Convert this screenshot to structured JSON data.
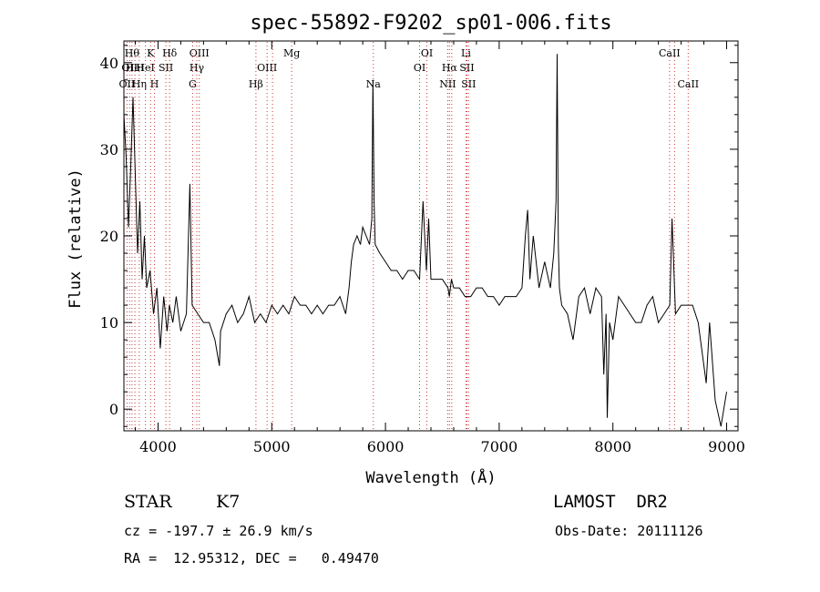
{
  "chart_data": {
    "type": "line",
    "title": "spec-55892-F9202_sp01-006.fits",
    "xlabel": "Wavelength (Å)",
    "ylabel": "Flux (relative)",
    "xlim": [
      3700,
      9100
    ],
    "ylim": [
      -2.5,
      42.5
    ],
    "xticks": [
      4000,
      5000,
      6000,
      7000,
      8000,
      9000
    ],
    "yticks": [
      0,
      10,
      20,
      30,
      40
    ],
    "grid": false,
    "legend": "none",
    "line_color": "#000000",
    "marker_color": "#cc3333",
    "series": [
      {
        "x": [
          3700,
          3720,
          3740,
          3760,
          3780,
          3800,
          3820,
          3840,
          3860,
          3880,
          3900,
          3930,
          3960,
          3990,
          4020,
          4050,
          4080,
          4100,
          4130,
          4160,
          4200,
          4250,
          4280,
          4300,
          4350,
          4400,
          4450,
          4500,
          4540,
          4550,
          4600,
          4650,
          4700,
          4750,
          4800,
          4850,
          4900,
          4950,
          5000,
          5050,
          5100,
          5150,
          5200,
          5250,
          5300,
          5350,
          5400,
          5450,
          5500,
          5550,
          5600,
          5650,
          5680,
          5700,
          5720,
          5750,
          5780,
          5800,
          5830,
          5860,
          5880,
          5890,
          5900,
          5910,
          5950,
          6000,
          6050,
          6100,
          6150,
          6200,
          6250,
          6300,
          6330,
          6360,
          6380,
          6400,
          6450,
          6500,
          6550,
          6562,
          6580,
          6600,
          6650,
          6700,
          6750,
          6800,
          6850,
          6900,
          6950,
          7000,
          7050,
          7100,
          7150,
          7200,
          7230,
          7250,
          7270,
          7300,
          7350,
          7400,
          7450,
          7480,
          7500,
          7510,
          7520,
          7530,
          7550,
          7600,
          7650,
          7700,
          7750,
          7800,
          7850,
          7900,
          7920,
          7940,
          7950,
          7970,
          8000,
          8050,
          8100,
          8150,
          8200,
          8250,
          8300,
          8350,
          8400,
          8450,
          8500,
          8520,
          8550,
          8600,
          8650,
          8700,
          8750,
          8800,
          8820,
          8850,
          8900,
          8950,
          9000
        ],
        "values": [
          34,
          29,
          21,
          28,
          36,
          27,
          18,
          24,
          15,
          20,
          14,
          16,
          11,
          14,
          7,
          13,
          9,
          12,
          10,
          13,
          9,
          11,
          26,
          12,
          11,
          10,
          10,
          8,
          5,
          9,
          11,
          12,
          10,
          11,
          13,
          10,
          11,
          10,
          12,
          11,
          12,
          11,
          13,
          12,
          12,
          11,
          12,
          11,
          12,
          12,
          13,
          11,
          14,
          17,
          19,
          20,
          19,
          21,
          20,
          19,
          22,
          38,
          24,
          19,
          18,
          17,
          16,
          16,
          15,
          16,
          16,
          15,
          24,
          16,
          22,
          15,
          15,
          15,
          14,
          13,
          15,
          14,
          14,
          13,
          13,
          14,
          14,
          13,
          13,
          12,
          13,
          13,
          13,
          14,
          20,
          23,
          15,
          20,
          14,
          17,
          14,
          18,
          24,
          41,
          19,
          14,
          12,
          11,
          8,
          13,
          14,
          11,
          14,
          13,
          4,
          11,
          -1,
          10,
          8,
          13,
          12,
          11,
          10,
          10,
          12,
          13,
          10,
          11,
          12,
          22,
          11,
          12,
          12,
          12,
          10,
          5,
          3,
          10,
          1,
          -2,
          2
        ]
      }
    ],
    "lines": [
      {
        "x": 3727,
        "label": "OII",
        "row": 3
      },
      {
        "x": 3750,
        "label": "OII",
        "row": 2
      },
      {
        "x": 3771,
        "label": "Hθ",
        "row": 1
      },
      {
        "x": 3797,
        "label": "HeI",
        "row": 2
      },
      {
        "x": 3835,
        "label": "Hη",
        "row": 3
      },
      {
        "x": 3889,
        "label": "HeI",
        "row": 2
      },
      {
        "x": 3934,
        "label": "K",
        "row": 1
      },
      {
        "x": 3969,
        "label": "H",
        "row": 3
      },
      {
        "x": 4069,
        "label": "SII",
        "row": 2
      },
      {
        "x": 4102,
        "label": "Hδ",
        "row": 1
      },
      {
        "x": 4304,
        "label": "G",
        "row": 3
      },
      {
        "x": 4341,
        "label": "Hγ",
        "row": 2
      },
      {
        "x": 4363,
        "label": "OIII",
        "row": 1
      },
      {
        "x": 4861,
        "label": "Hβ",
        "row": 3
      },
      {
        "x": 4959,
        "label": "OIII",
        "row": 2
      },
      {
        "x": 5007,
        "label": "",
        "row": 2
      },
      {
        "x": 5175,
        "label": "Mg",
        "row": 1
      },
      {
        "x": 5893,
        "label": "Na",
        "row": 3
      },
      {
        "x": 6300,
        "label": "OI",
        "row": 2
      },
      {
        "x": 6364,
        "label": "OI",
        "row": 1
      },
      {
        "x": 6548,
        "label": "NII",
        "row": 3
      },
      {
        "x": 6563,
        "label": "Hα",
        "row": 2
      },
      {
        "x": 6583,
        "label": "",
        "row": 3
      },
      {
        "x": 6708,
        "label": "Li",
        "row": 1
      },
      {
        "x": 6716,
        "label": "SII",
        "row": 2
      },
      {
        "x": 6731,
        "label": "SII",
        "row": 3
      },
      {
        "x": 8498,
        "label": "CaII",
        "row": 1
      },
      {
        "x": 8542,
        "label": "",
        "row": 1
      },
      {
        "x": 8662,
        "label": "CaII",
        "row": 3
      }
    ]
  },
  "info": {
    "object_class": "STAR",
    "subclass": "K7",
    "survey": "LAMOST  DR2",
    "redshift": "cz = -197.7 ± 26.9 km/s",
    "obs_date": "Obs-Date: 20111126",
    "coords": "RA =  12.95312, DEC =   0.49470"
  }
}
